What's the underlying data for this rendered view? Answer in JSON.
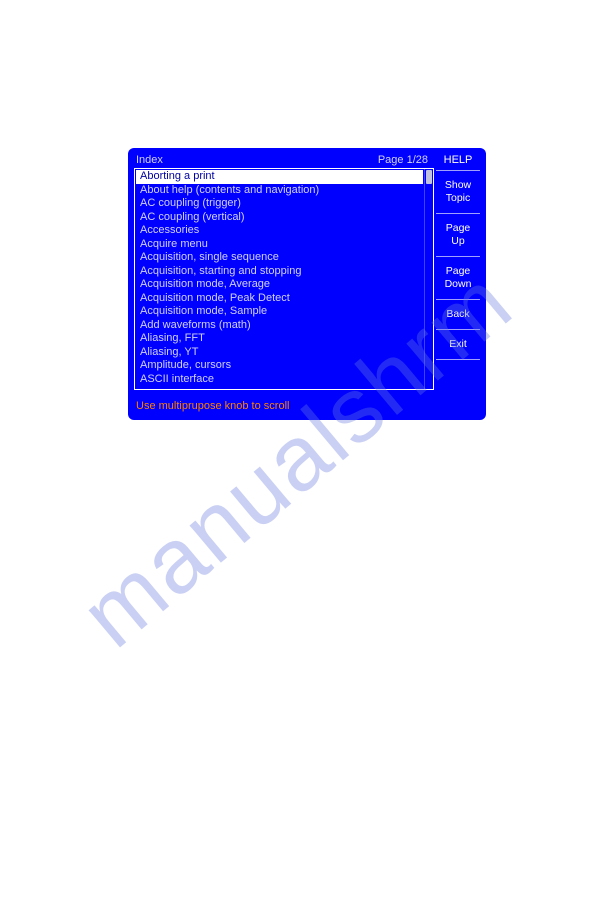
{
  "watermark": {
    "text": "manualshrm"
  },
  "screen": {
    "title_left": "Index",
    "title_right": "Page 1/28",
    "hint": "Use multiprupose knob to scroll",
    "colors": {
      "bg": "#0000ff",
      "text": "#d0d0ff",
      "selected_bg": "#ffffff",
      "selected_fg": "#0000a0",
      "hint": "#ff8000",
      "side_text": "#ffffff"
    },
    "index_items": [
      {
        "label": "Aborting a print",
        "selected": true
      },
      {
        "label": "About help (contents and navigation)",
        "selected": false
      },
      {
        "label": "AC coupling (trigger)",
        "selected": false
      },
      {
        "label": "AC coupling (vertical)",
        "selected": false
      },
      {
        "label": "Accessories",
        "selected": false
      },
      {
        "label": "Acquire menu",
        "selected": false
      },
      {
        "label": "Acquisition, single sequence",
        "selected": false
      },
      {
        "label": "Acquisition, starting and stopping",
        "selected": false
      },
      {
        "label": "Acquisition mode, Average",
        "selected": false
      },
      {
        "label": "Acquisition mode, Peak Detect",
        "selected": false
      },
      {
        "label": "Acquisition mode, Sample",
        "selected": false
      },
      {
        "label": "Add waveforms (math)",
        "selected": false
      },
      {
        "label": "Aliasing, FFT",
        "selected": false
      },
      {
        "label": "Aliasing, YT",
        "selected": false
      },
      {
        "label": "Amplitude, cursors",
        "selected": false
      },
      {
        "label": "ASCII interface",
        "selected": false
      }
    ],
    "side": {
      "title": "HELP",
      "buttons": [
        {
          "label": "Show\nTopic"
        },
        {
          "label": "Page\nUp"
        },
        {
          "label": "Page\nDown"
        },
        {
          "label": "Back"
        },
        {
          "label": "Exit"
        }
      ]
    }
  }
}
